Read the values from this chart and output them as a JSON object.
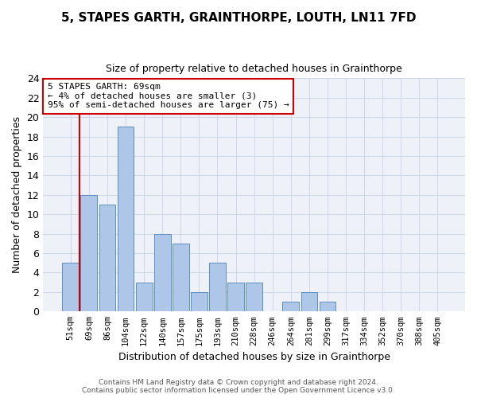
{
  "title": "5, STAPES GARTH, GRAINTHORPE, LOUTH, LN11 7FD",
  "subtitle": "Size of property relative to detached houses in Grainthorpe",
  "xlabel": "Distribution of detached houses by size in Grainthorpe",
  "ylabel": "Number of detached properties",
  "categories": [
    "51sqm",
    "69sqm",
    "86sqm",
    "104sqm",
    "122sqm",
    "140sqm",
    "157sqm",
    "175sqm",
    "193sqm",
    "210sqm",
    "228sqm",
    "246sqm",
    "264sqm",
    "281sqm",
    "299sqm",
    "317sqm",
    "334sqm",
    "352sqm",
    "370sqm",
    "388sqm",
    "405sqm"
  ],
  "values": [
    5,
    12,
    11,
    19,
    3,
    8,
    7,
    2,
    5,
    3,
    3,
    0,
    1,
    2,
    1,
    0,
    0,
    0,
    0,
    0,
    0
  ],
  "bar_color": "#aec6e8",
  "bar_edge_color": "#5a8fc0",
  "grid_color": "#d0d8e8",
  "background_color": "#eef2f8",
  "annotation_line1": "5 STAPES GARTH: 69sqm",
  "annotation_line2": "← 4% of detached houses are smaller (3)",
  "annotation_line3": "95% of semi-detached houses are larger (75) →",
  "vline_x_index": 1,
  "vline_color": "#cc0000",
  "annotation_box_edge_color": "#cc0000",
  "ylim": [
    0,
    24
  ],
  "yticks": [
    0,
    2,
    4,
    6,
    8,
    10,
    12,
    14,
    16,
    18,
    20,
    22,
    24
  ],
  "footer_line1": "Contains HM Land Registry data © Crown copyright and database right 2024.",
  "footer_line2": "Contains public sector information licensed under the Open Government Licence v3.0."
}
